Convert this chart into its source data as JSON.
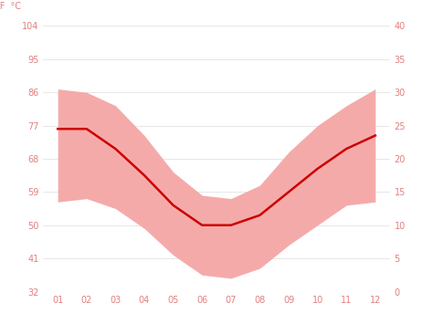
{
  "months": [
    1,
    2,
    3,
    4,
    5,
    6,
    7,
    8,
    9,
    10,
    11,
    12
  ],
  "month_labels": [
    "01",
    "02",
    "03",
    "04",
    "05",
    "06",
    "07",
    "08",
    "09",
    "10",
    "11",
    "12"
  ],
  "avg_temp_c": [
    24.5,
    24.5,
    21.5,
    17.5,
    13.0,
    10.0,
    10.0,
    11.5,
    15.0,
    18.5,
    21.5,
    23.5
  ],
  "max_temp_c": [
    30.5,
    30.0,
    28.0,
    23.5,
    18.0,
    14.5,
    14.0,
    16.0,
    21.0,
    25.0,
    28.0,
    30.5
  ],
  "min_temp_c": [
    13.5,
    14.0,
    12.5,
    9.5,
    5.5,
    2.5,
    2.0,
    3.5,
    7.0,
    10.0,
    13.0,
    13.5
  ],
  "ylim_c": [
    0,
    40
  ],
  "yticks_c": [
    0,
    5,
    10,
    15,
    20,
    25,
    30,
    35,
    40
  ],
  "yticks_f": [
    32,
    41,
    50,
    59,
    68,
    77,
    86,
    95,
    104
  ],
  "line_color": "#cc0000",
  "fill_color": "#f5aaaa",
  "bg_color": "#ffffff",
  "grid_color": "#dddddd",
  "tick_label_color": "#e08080",
  "figsize": [
    4.74,
    3.55
  ],
  "dpi": 100
}
